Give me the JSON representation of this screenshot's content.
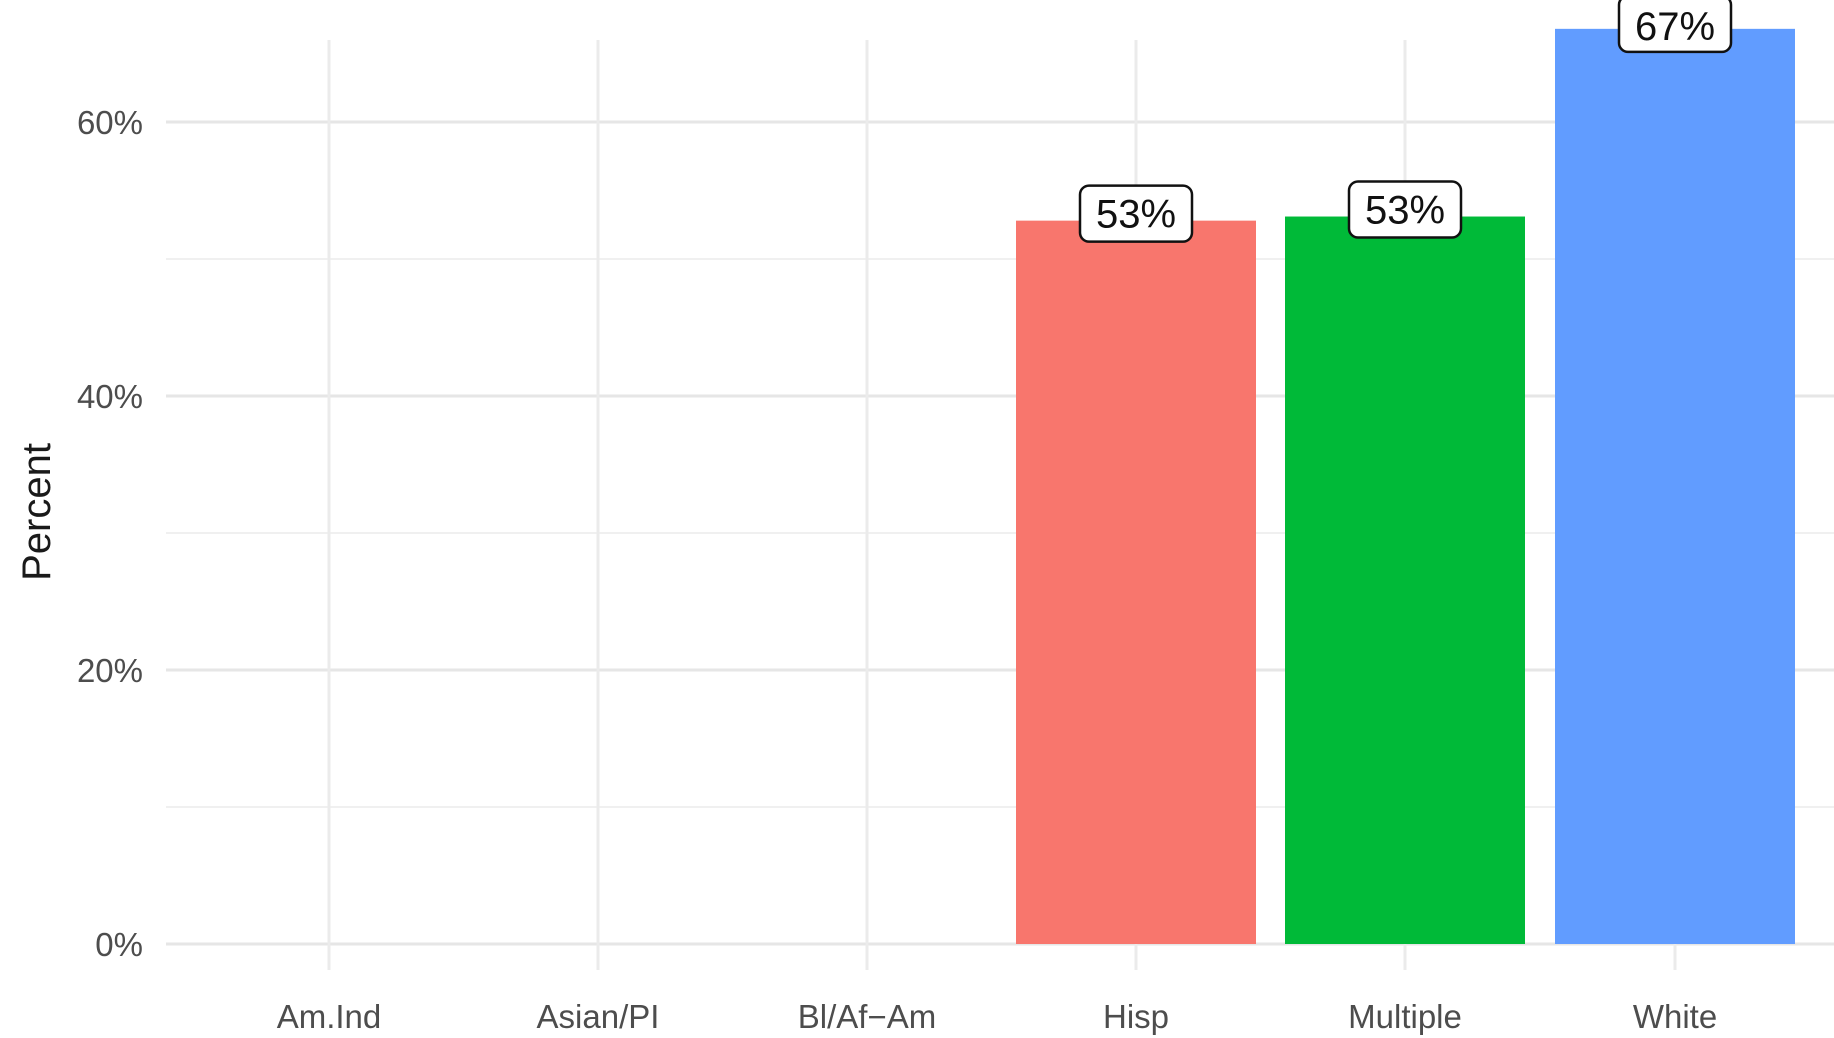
{
  "chart_data": {
    "type": "bar",
    "categories": [
      "Am.Ind",
      "Asian/PI",
      "Bl/Af−Am",
      "Hisp",
      "Multiple",
      "White"
    ],
    "values": [
      0,
      0,
      0,
      52.8,
      53.1,
      66.8
    ],
    "data_labels": [
      "",
      "",
      "",
      "53%",
      "53%",
      "67%"
    ],
    "colors": [
      "#F8766D",
      "#B79F00",
      "#00BA38",
      "#F8766D",
      "#00BA38",
      "#619CFF"
    ],
    "ylabel": "Percent",
    "xlabel": "",
    "ylim": [
      0,
      70
    ],
    "yticks": [
      0,
      20,
      40,
      60
    ],
    "ytick_labels": [
      "0%",
      "20%",
      "40%",
      "60%"
    ],
    "grid": true,
    "legend": "none"
  }
}
